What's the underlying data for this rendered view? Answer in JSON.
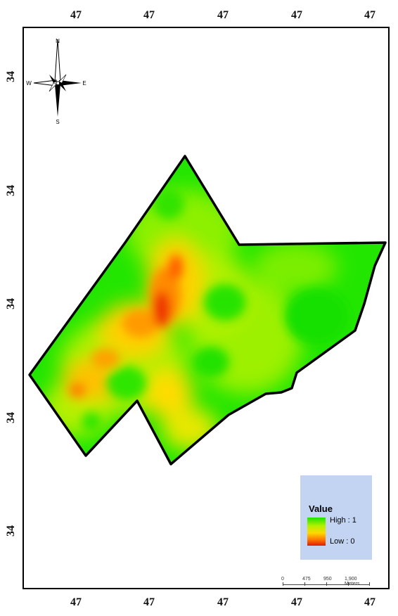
{
  "map": {
    "axis_ticks": {
      "top": [
        "47",
        "47",
        "47",
        "47",
        "47"
      ],
      "bottom": [
        "47",
        "47",
        "47",
        "47",
        "47"
      ],
      "left": [
        "34",
        "34",
        "34",
        "34",
        "34"
      ],
      "right": []
    },
    "north_arrow": {
      "N": "N",
      "S": "S",
      "E": "E",
      "W": "W"
    },
    "legend": {
      "title": "Value",
      "high_label": "High : 1",
      "low_label": "Low : 0",
      "high_color": "#1ee400",
      "low_color": "#e01a00"
    },
    "scale_bar": {
      "labels": [
        "0",
        "475",
        "950",
        "1,900 Meters"
      ]
    },
    "colors": {
      "high": "#1ee400",
      "mid": "#ffd800",
      "low": "#e01a00",
      "boundary": "#000000",
      "legend_background": "#c3d4f2"
    }
  }
}
